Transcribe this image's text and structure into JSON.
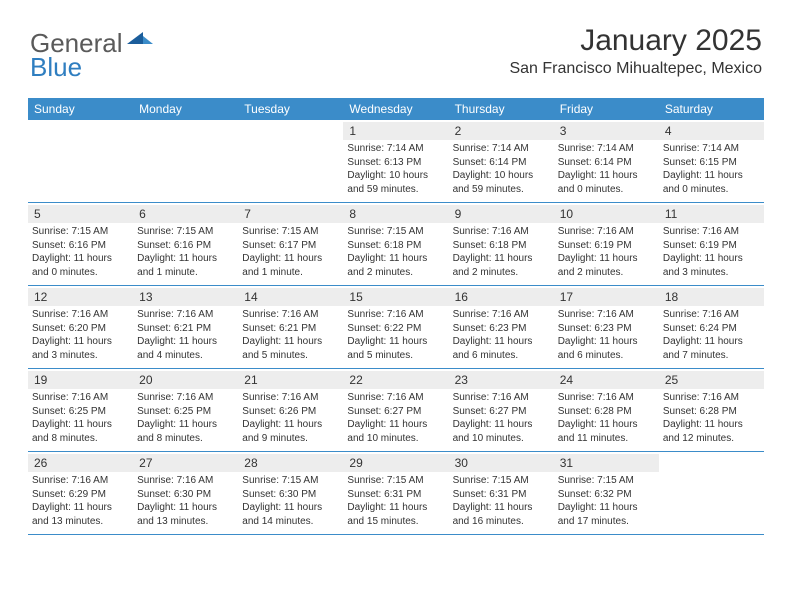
{
  "logo": {
    "text1": "General",
    "text2": "Blue"
  },
  "header": {
    "month_title": "January 2025",
    "location": "San Francisco Mihualtepec, Mexico"
  },
  "colors": {
    "header_bg": "#3b8cc9",
    "header_text": "#ffffff",
    "daynum_bg": "#ededed",
    "text": "#333333",
    "logo_gray": "#5a5a5a",
    "logo_blue": "#2f7ec0",
    "border": "#3b8cc9"
  },
  "day_names": [
    "Sunday",
    "Monday",
    "Tuesday",
    "Wednesday",
    "Thursday",
    "Friday",
    "Saturday"
  ],
  "weeks": [
    [
      null,
      null,
      null,
      {
        "n": "1",
        "sr": "7:14 AM",
        "ss": "6:13 PM",
        "dl": "10 hours and 59 minutes."
      },
      {
        "n": "2",
        "sr": "7:14 AM",
        "ss": "6:14 PM",
        "dl": "10 hours and 59 minutes."
      },
      {
        "n": "3",
        "sr": "7:14 AM",
        "ss": "6:14 PM",
        "dl": "11 hours and 0 minutes."
      },
      {
        "n": "4",
        "sr": "7:14 AM",
        "ss": "6:15 PM",
        "dl": "11 hours and 0 minutes."
      }
    ],
    [
      {
        "n": "5",
        "sr": "7:15 AM",
        "ss": "6:16 PM",
        "dl": "11 hours and 0 minutes."
      },
      {
        "n": "6",
        "sr": "7:15 AM",
        "ss": "6:16 PM",
        "dl": "11 hours and 1 minute."
      },
      {
        "n": "7",
        "sr": "7:15 AM",
        "ss": "6:17 PM",
        "dl": "11 hours and 1 minute."
      },
      {
        "n": "8",
        "sr": "7:15 AM",
        "ss": "6:18 PM",
        "dl": "11 hours and 2 minutes."
      },
      {
        "n": "9",
        "sr": "7:16 AM",
        "ss": "6:18 PM",
        "dl": "11 hours and 2 minutes."
      },
      {
        "n": "10",
        "sr": "7:16 AM",
        "ss": "6:19 PM",
        "dl": "11 hours and 2 minutes."
      },
      {
        "n": "11",
        "sr": "7:16 AM",
        "ss": "6:19 PM",
        "dl": "11 hours and 3 minutes."
      }
    ],
    [
      {
        "n": "12",
        "sr": "7:16 AM",
        "ss": "6:20 PM",
        "dl": "11 hours and 3 minutes."
      },
      {
        "n": "13",
        "sr": "7:16 AM",
        "ss": "6:21 PM",
        "dl": "11 hours and 4 minutes."
      },
      {
        "n": "14",
        "sr": "7:16 AM",
        "ss": "6:21 PM",
        "dl": "11 hours and 5 minutes."
      },
      {
        "n": "15",
        "sr": "7:16 AM",
        "ss": "6:22 PM",
        "dl": "11 hours and 5 minutes."
      },
      {
        "n": "16",
        "sr": "7:16 AM",
        "ss": "6:23 PM",
        "dl": "11 hours and 6 minutes."
      },
      {
        "n": "17",
        "sr": "7:16 AM",
        "ss": "6:23 PM",
        "dl": "11 hours and 6 minutes."
      },
      {
        "n": "18",
        "sr": "7:16 AM",
        "ss": "6:24 PM",
        "dl": "11 hours and 7 minutes."
      }
    ],
    [
      {
        "n": "19",
        "sr": "7:16 AM",
        "ss": "6:25 PM",
        "dl": "11 hours and 8 minutes."
      },
      {
        "n": "20",
        "sr": "7:16 AM",
        "ss": "6:25 PM",
        "dl": "11 hours and 8 minutes."
      },
      {
        "n": "21",
        "sr": "7:16 AM",
        "ss": "6:26 PM",
        "dl": "11 hours and 9 minutes."
      },
      {
        "n": "22",
        "sr": "7:16 AM",
        "ss": "6:27 PM",
        "dl": "11 hours and 10 minutes."
      },
      {
        "n": "23",
        "sr": "7:16 AM",
        "ss": "6:27 PM",
        "dl": "11 hours and 10 minutes."
      },
      {
        "n": "24",
        "sr": "7:16 AM",
        "ss": "6:28 PM",
        "dl": "11 hours and 11 minutes."
      },
      {
        "n": "25",
        "sr": "7:16 AM",
        "ss": "6:28 PM",
        "dl": "11 hours and 12 minutes."
      }
    ],
    [
      {
        "n": "26",
        "sr": "7:16 AM",
        "ss": "6:29 PM",
        "dl": "11 hours and 13 minutes."
      },
      {
        "n": "27",
        "sr": "7:16 AM",
        "ss": "6:30 PM",
        "dl": "11 hours and 13 minutes."
      },
      {
        "n": "28",
        "sr": "7:15 AM",
        "ss": "6:30 PM",
        "dl": "11 hours and 14 minutes."
      },
      {
        "n": "29",
        "sr": "7:15 AM",
        "ss": "6:31 PM",
        "dl": "11 hours and 15 minutes."
      },
      {
        "n": "30",
        "sr": "7:15 AM",
        "ss": "6:31 PM",
        "dl": "11 hours and 16 minutes."
      },
      {
        "n": "31",
        "sr": "7:15 AM",
        "ss": "6:32 PM",
        "dl": "11 hours and 17 minutes."
      },
      null
    ]
  ],
  "labels": {
    "sunrise": "Sunrise:",
    "sunset": "Sunset:",
    "daylight": "Daylight:"
  }
}
